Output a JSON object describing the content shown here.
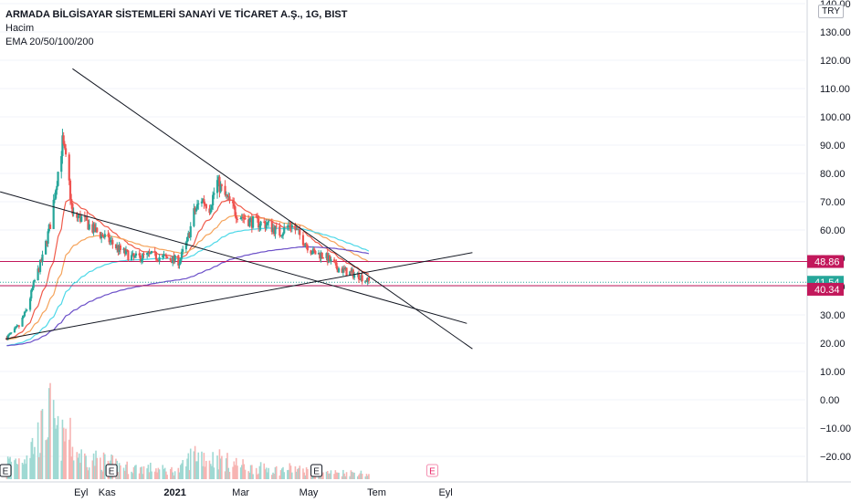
{
  "header": {
    "title": "ARMADA BİLGİSAYAR SİSTEMLERİ SANAYİ VE TİCARET A.Ş., 1G, BIST",
    "volume_label": "Hacim",
    "ema_label": "EMA 20/50/100/200",
    "currency": "TRY"
  },
  "colors": {
    "up": "#26a69a",
    "down": "#ef5350",
    "vol_up": "#9fd9d3",
    "vol_down": "#f7b4b2",
    "ema20": "#f05a4a",
    "ema50": "#f5a35a",
    "ema100": "#4dd8e8",
    "ema200": "#6b4fc8",
    "hline": "#c2185b",
    "trend": "#131722",
    "current": "#26a69a"
  },
  "chart_data": {
    "type": "candlestick",
    "title": "ARMADA BİLGİSAYAR SİSTEMLERİ SANAYİ VE TİCARET A.Ş., 1G, BIST",
    "interval": "1D",
    "price_axis": {
      "ticks": [
        "140.00",
        "130.00",
        "120.00",
        "110.00",
        "100.00",
        "90.00",
        "80.00",
        "70.00",
        "60.00",
        "50.00",
        "40.00",
        "30.00",
        "20.00",
        "10.00",
        "0.00",
        "−10.00",
        "−20.00"
      ],
      "tick_values": [
        140,
        130,
        120,
        110,
        100,
        90,
        80,
        70,
        60,
        50,
        40,
        30,
        20,
        10,
        0,
        -10,
        -20
      ],
      "ylim": [
        -27,
        141
      ]
    },
    "time_axis": {
      "labels": [
        "Eyl",
        "Kas",
        "2021",
        "Mar",
        "May",
        "Tem",
        "Eyl"
      ],
      "bold": [
        "2021"
      ]
    },
    "price_labels": [
      {
        "value": "48.86",
        "kind": "hline"
      },
      {
        "value": "41.54",
        "kind": "current"
      },
      {
        "value": "40.34",
        "kind": "hline"
      }
    ],
    "hlines": [
      48.86,
      40.34
    ],
    "current_price": 41.54,
    "earnings_markers": [
      {
        "label": "E",
        "date": "2020-08-01",
        "future": false
      },
      {
        "label": "E",
        "date": "2020-11-05",
        "future": false
      },
      {
        "label": "E",
        "date": "2021-05-08",
        "future": false
      },
      {
        "label": "E",
        "date": "2021-08-20",
        "future": true
      }
    ],
    "trendlines": [
      {
        "from": [
          "2020-10-01",
          117
        ],
        "to": [
          "2021-09-25",
          18
        ]
      },
      {
        "from": [
          "2020-07-28",
          73.5
        ],
        "to": [
          "2021-09-20",
          27
        ]
      },
      {
        "from": [
          "2020-08-02",
          21.5
        ],
        "to": [
          "2021-09-25",
          52
        ]
      }
    ],
    "ema_periods": [
      20,
      50,
      100,
      200
    ],
    "ohlc_anchors": [
      {
        "date": "2020-08-03",
        "close": 22,
        "vol": 8
      },
      {
        "date": "2020-08-14",
        "close": 26,
        "vol": 9
      },
      {
        "date": "2020-08-21",
        "close": 32,
        "vol": 12
      },
      {
        "date": "2020-08-28",
        "close": 42,
        "vol": 17
      },
      {
        "date": "2020-09-04",
        "close": 50,
        "vol": 22
      },
      {
        "date": "2020-09-11",
        "close": 62,
        "vol": 30
      },
      {
        "date": "2020-09-17",
        "close": 78,
        "vol": 20
      },
      {
        "date": "2020-09-22",
        "close": 91,
        "vol": 18
      },
      {
        "date": "2020-09-27",
        "close": 80,
        "vol": 22
      },
      {
        "date": "2020-10-01",
        "close": 65,
        "vol": 14
      },
      {
        "date": "2020-10-10",
        "close": 64,
        "vol": 10
      },
      {
        "date": "2020-10-20",
        "close": 60,
        "vol": 9
      },
      {
        "date": "2020-11-01",
        "close": 57,
        "vol": 8
      },
      {
        "date": "2020-11-12",
        "close": 53,
        "vol": 6
      },
      {
        "date": "2020-11-25",
        "close": 50,
        "vol": 5
      },
      {
        "date": "2020-12-10",
        "close": 51,
        "vol": 5
      },
      {
        "date": "2020-12-25",
        "close": 50,
        "vol": 4
      },
      {
        "date": "2021-01-05",
        "close": 49,
        "vol": 4
      },
      {
        "date": "2021-01-12",
        "close": 56,
        "vol": 8
      },
      {
        "date": "2021-01-18",
        "close": 66,
        "vol": 12
      },
      {
        "date": "2021-01-25",
        "close": 71,
        "vol": 11
      },
      {
        "date": "2021-02-01",
        "close": 68,
        "vol": 9
      },
      {
        "date": "2021-02-08",
        "close": 77,
        "vol": 10
      },
      {
        "date": "2021-02-15",
        "close": 72,
        "vol": 8
      },
      {
        "date": "2021-02-25",
        "close": 66,
        "vol": 7
      },
      {
        "date": "2021-03-10",
        "close": 63,
        "vol": 5
      },
      {
        "date": "2021-03-25",
        "close": 62,
        "vol": 5
      },
      {
        "date": "2021-04-05",
        "close": 59,
        "vol": 4
      },
      {
        "date": "2021-04-15",
        "close": 62,
        "vol": 5
      },
      {
        "date": "2021-04-25",
        "close": 57,
        "vol": 4
      },
      {
        "date": "2021-05-05",
        "close": 52,
        "vol": 4
      },
      {
        "date": "2021-05-15",
        "close": 51,
        "vol": 3
      },
      {
        "date": "2021-05-25",
        "close": 47,
        "vol": 3
      },
      {
        "date": "2021-06-05",
        "close": 45,
        "vol": 3
      },
      {
        "date": "2021-06-15",
        "close": 44,
        "vol": 3
      },
      {
        "date": "2021-06-25",
        "close": 41.54,
        "vol": 2
      }
    ]
  }
}
